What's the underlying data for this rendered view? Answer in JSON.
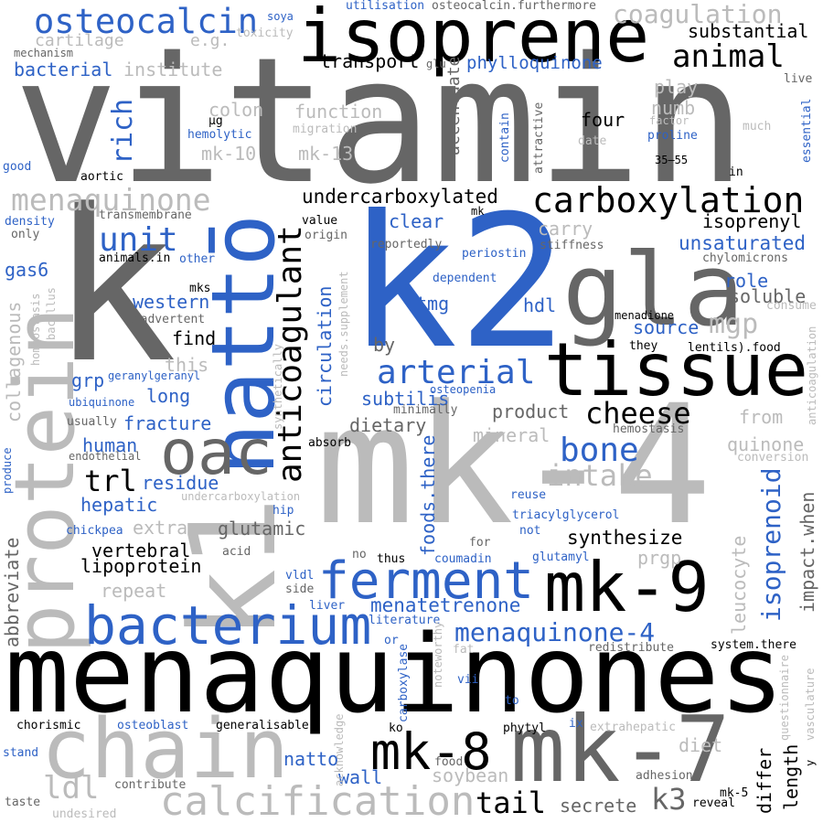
{
  "palette": {
    "black": "#000000",
    "dark_grey": "#666666",
    "light_grey": "#bbbbbb",
    "blue": "#2e62c6"
  },
  "words": [
    {
      "text": "vitamin",
      "color": "dark_grey",
      "orientation": "horizontal"
    },
    {
      "text": "menaquinones",
      "color": "black",
      "orientation": "horizontal"
    },
    {
      "text": "mk-4",
      "color": "light_grey",
      "orientation": "horizontal"
    },
    {
      "text": "k2",
      "color": "blue",
      "orientation": "horizontal"
    },
    {
      "text": "k",
      "color": "dark_grey",
      "orientation": "horizontal"
    },
    {
      "text": "isoprene",
      "color": "black",
      "orientation": "horizontal"
    },
    {
      "text": "tissue",
      "color": "black",
      "orientation": "horizontal"
    },
    {
      "text": "gla",
      "color": "dark_grey",
      "orientation": "horizontal"
    },
    {
      "text": "chain",
      "color": "light_grey",
      "orientation": "horizontal"
    },
    {
      "text": "mk-7",
      "color": "dark_grey",
      "orientation": "horizontal"
    },
    {
      "text": "mk-9",
      "color": "black",
      "orientation": "horizontal"
    },
    {
      "text": "k1",
      "color": "light_grey",
      "orientation": "vertical"
    },
    {
      "text": "protein",
      "color": "light_grey",
      "orientation": "vertical"
    },
    {
      "text": "nattō",
      "color": "blue",
      "orientation": "vertical"
    },
    {
      "text": "oac",
      "color": "dark_grey",
      "orientation": "horizontal"
    },
    {
      "text": "bacterium",
      "color": "blue",
      "orientation": "horizontal"
    },
    {
      "text": "ferment",
      "color": "blue",
      "orientation": "horizontal"
    },
    {
      "text": "mk-8",
      "color": "black",
      "orientation": "horizontal"
    },
    {
      "text": "calcification",
      "color": "light_grey",
      "orientation": "horizontal"
    },
    {
      "text": "carboxylation",
      "color": "black",
      "orientation": "horizontal"
    },
    {
      "text": "anticoagulant",
      "color": "black",
      "orientation": "vertical"
    },
    {
      "text": "osteocalcin",
      "color": "blue",
      "orientation": "horizontal"
    },
    {
      "text": "arterial",
      "color": "blue",
      "orientation": "horizontal"
    },
    {
      "text": "bone",
      "color": "blue",
      "orientation": "horizontal"
    },
    {
      "text": "menaquinone",
      "color": "light_grey",
      "orientation": "horizontal"
    },
    {
      "text": "coagulation",
      "color": "light_grey",
      "orientation": "horizontal"
    },
    {
      "text": "animal",
      "color": "black",
      "orientation": "horizontal"
    },
    {
      "text": "menaquinone-4",
      "color": "blue",
      "orientation": "horizontal"
    },
    {
      "text": "unit",
      "color": "blue",
      "orientation": "horizontal"
    },
    {
      "text": "rich",
      "color": "blue",
      "orientation": "vertical"
    },
    {
      "text": "cheese",
      "color": "black",
      "orientation": "horizontal"
    },
    {
      "text": "intake",
      "color": "light_grey",
      "orientation": "horizontal"
    },
    {
      "text": "mgp",
      "color": "light_grey",
      "orientation": "horizontal"
    },
    {
      "text": "ldl",
      "color": "light_grey",
      "orientation": "horizontal"
    },
    {
      "text": "tail",
      "color": "black",
      "orientation": "horizontal"
    },
    {
      "text": "k3",
      "color": "dark_grey",
      "orientation": "horizontal"
    },
    {
      "text": "trl",
      "color": "black",
      "orientation": "horizontal"
    },
    {
      "text": "isoprenoid",
      "color": "blue",
      "orientation": "vertical"
    },
    {
      "text": "undercarboxylated",
      "color": "black",
      "orientation": "horizontal"
    },
    {
      "text": "phylloquinone",
      "color": "blue",
      "orientation": "horizontal"
    },
    {
      "text": "substantial",
      "color": "black",
      "orientation": "horizontal"
    },
    {
      "text": "transport",
      "color": "black",
      "orientation": "horizontal"
    },
    {
      "text": "unsaturated",
      "color": "blue",
      "orientation": "horizontal"
    },
    {
      "text": "isoprenyl",
      "color": "black",
      "orientation": "horizontal"
    },
    {
      "text": "circulation",
      "color": "blue",
      "orientation": "vertical"
    },
    {
      "text": "foods.there",
      "color": "blue",
      "orientation": "vertical"
    },
    {
      "text": "menatetrenone",
      "color": "blue",
      "orientation": "horizontal"
    },
    {
      "text": "synthesize",
      "color": "black",
      "orientation": "horizontal"
    },
    {
      "text": "dietary",
      "color": "dark_grey",
      "orientation": "horizontal"
    },
    {
      "text": "product",
      "color": "dark_grey",
      "orientation": "horizontal"
    },
    {
      "text": "western",
      "color": "blue",
      "orientation": "horizontal"
    },
    {
      "text": "subtilis",
      "color": "blue",
      "orientation": "horizontal"
    },
    {
      "text": "hdl",
      "color": "blue",
      "orientation": "horizontal"
    },
    {
      "text": "tmg",
      "color": "blue",
      "orientation": "horizontal"
    },
    {
      "text": "clear",
      "color": "blue",
      "orientation": "horizontal"
    },
    {
      "text": "carry",
      "color": "light_grey",
      "orientation": "horizontal"
    },
    {
      "text": "four",
      "color": "black",
      "orientation": "horizontal"
    },
    {
      "text": "numb",
      "color": "light_grey",
      "orientation": "horizontal"
    },
    {
      "text": "play",
      "color": "light_grey",
      "orientation": "horizontal"
    },
    {
      "text": "role",
      "color": "blue",
      "orientation": "horizontal"
    },
    {
      "text": "soluble",
      "color": "dark_grey",
      "orientation": "horizontal"
    },
    {
      "text": "source",
      "color": "blue",
      "orientation": "horizontal"
    },
    {
      "text": "gas6",
      "color": "blue",
      "orientation": "horizontal"
    },
    {
      "text": "collagenous",
      "color": "light_grey",
      "orientation": "vertical"
    },
    {
      "text": "fracture",
      "color": "blue",
      "orientation": "horizontal"
    },
    {
      "text": "long",
      "color": "blue",
      "orientation": "horizontal"
    },
    {
      "text": "grp",
      "color": "blue",
      "orientation": "horizontal"
    },
    {
      "text": "human",
      "color": "blue",
      "orientation": "horizontal"
    },
    {
      "text": "residue",
      "color": "blue",
      "orientation": "horizontal"
    },
    {
      "text": "hepatic",
      "color": "blue",
      "orientation": "horizontal"
    },
    {
      "text": "glutamic",
      "color": "dark_grey",
      "orientation": "horizontal"
    },
    {
      "text": "vertebral",
      "color": "black",
      "orientation": "horizontal"
    },
    {
      "text": "lipoprotein",
      "color": "black",
      "orientation": "horizontal"
    },
    {
      "text": "repeat",
      "color": "light_grey",
      "orientation": "horizontal"
    },
    {
      "text": "extra",
      "color": "light_grey",
      "orientation": "horizontal"
    },
    {
      "text": "mineral",
      "color": "light_grey",
      "orientation": "horizontal"
    },
    {
      "text": "quinone",
      "color": "light_grey",
      "orientation": "horizontal"
    },
    {
      "text": "from",
      "color": "light_grey",
      "orientation": "horizontal"
    },
    {
      "text": "leucocyte",
      "color": "light_grey",
      "orientation": "vertical"
    },
    {
      "text": "impact.when",
      "color": "dark_grey",
      "orientation": "vertical"
    },
    {
      "text": "prgp",
      "color": "light_grey",
      "orientation": "horizontal"
    },
    {
      "text": "diet",
      "color": "light_grey",
      "orientation": "horizontal"
    },
    {
      "text": "length",
      "color": "black",
      "orientation": "vertical"
    },
    {
      "text": "differ",
      "color": "black",
      "orientation": "vertical"
    },
    {
      "text": "wall",
      "color": "blue",
      "orientation": "horizontal"
    },
    {
      "text": "natto",
      "color": "blue",
      "orientation": "horizontal"
    },
    {
      "text": "soybean",
      "color": "light_grey",
      "orientation": "horizontal"
    },
    {
      "text": "secrete",
      "color": "dark_grey",
      "orientation": "horizontal"
    },
    {
      "text": "abbreviate",
      "color": "dark_grey",
      "orientation": "vertical"
    },
    {
      "text": "bacterial",
      "color": "blue",
      "orientation": "horizontal"
    },
    {
      "text": "institute",
      "color": "light_grey",
      "orientation": "horizontal"
    },
    {
      "text": "cartilage",
      "color": "light_grey",
      "orientation": "horizontal"
    },
    {
      "text": "e.g.",
      "color": "light_grey",
      "orientation": "horizontal"
    },
    {
      "text": "colon",
      "color": "light_grey",
      "orientation": "horizontal"
    },
    {
      "text": "function",
      "color": "light_grey",
      "orientation": "horizontal"
    },
    {
      "text": "mk-10",
      "color": "light_grey",
      "orientation": "horizontal"
    },
    {
      "text": "mk-13",
      "color": "light_grey",
      "orientation": "horizontal"
    },
    {
      "text": "accentuate",
      "color": "dark_grey",
      "orientation": "vertical"
    },
    {
      "text": "find",
      "color": "black",
      "orientation": "horizontal"
    },
    {
      "text": "this",
      "color": "light_grey",
      "orientation": "horizontal"
    },
    {
      "text": "by",
      "color": "dark_grey",
      "orientation": "horizontal"
    },
    {
      "text": "hemolytic",
      "color": "blue",
      "orientation": "horizontal"
    },
    {
      "text": "mk-5",
      "color": "black",
      "orientation": "horizontal"
    },
    {
      "text": "soya",
      "color": "blue",
      "orientation": "horizontal"
    },
    {
      "text": "utilisation",
      "color": "blue",
      "orientation": "horizontal"
    },
    {
      "text": "osteocalcin.furthermore",
      "color": "dark_grey",
      "orientation": "horizontal"
    },
    {
      "text": "toxicity",
      "color": "light_grey",
      "orientation": "horizontal"
    },
    {
      "text": "mechanism",
      "color": "dark_grey",
      "orientation": "horizontal"
    },
    {
      "text": "glu",
      "color": "dark_grey",
      "orientation": "horizontal"
    },
    {
      "text": "live",
      "color": "dark_grey",
      "orientation": "horizontal"
    },
    {
      "text": "μg",
      "color": "black",
      "orientation": "horizontal"
    },
    {
      "text": "migration",
      "color": "light_grey",
      "orientation": "horizontal"
    },
    {
      "text": "factor",
      "color": "light_grey",
      "orientation": "horizontal"
    },
    {
      "text": "much",
      "color": "light_grey",
      "orientation": "horizontal"
    },
    {
      "text": "essential",
      "color": "blue",
      "orientation": "vertical"
    },
    {
      "text": "proline",
      "color": "blue",
      "orientation": "horizontal"
    },
    {
      "text": "date",
      "color": "light_grey",
      "orientation": "horizontal"
    },
    {
      "text": "contain",
      "color": "blue",
      "orientation": "vertical"
    },
    {
      "text": "attractive",
      "color": "dark_grey",
      "orientation": "vertical"
    },
    {
      "text": "35–55",
      "color": "black",
      "orientation": "horizontal"
    },
    {
      "text": "in",
      "color": "black",
      "orientation": "horizontal"
    },
    {
      "text": "good",
      "color": "blue",
      "orientation": "horizontal"
    },
    {
      "text": "aortic",
      "color": "black",
      "orientation": "horizontal"
    },
    {
      "text": "density",
      "color": "blue",
      "orientation": "horizontal"
    },
    {
      "text": "only",
      "color": "dark_grey",
      "orientation": "horizontal"
    },
    {
      "text": "transmembrane",
      "color": "dark_grey",
      "orientation": "horizontal"
    },
    {
      "text": "value",
      "color": "black",
      "orientation": "horizontal"
    },
    {
      "text": "origin",
      "color": "dark_grey",
      "orientation": "horizontal"
    },
    {
      "text": "mk",
      "color": "black",
      "orientation": "horizontal"
    },
    {
      "text": "reportedly",
      "color": "dark_grey",
      "orientation": "horizontal"
    },
    {
      "text": "periostin",
      "color": "blue",
      "orientation": "horizontal"
    },
    {
      "text": "stiffness",
      "color": "dark_grey",
      "orientation": "horizontal"
    },
    {
      "text": "chylomicrons",
      "color": "dark_grey",
      "orientation": "horizontal"
    },
    {
      "text": "animals.in",
      "color": "black",
      "orientation": "horizontal"
    },
    {
      "text": "other",
      "color": "blue",
      "orientation": "horizontal"
    },
    {
      "text": "dependent",
      "color": "blue",
      "orientation": "horizontal"
    },
    {
      "text": "mks",
      "color": "black",
      "orientation": "horizontal"
    },
    {
      "text": "inadvertent",
      "color": "dark_grey",
      "orientation": "horizontal"
    },
    {
      "text": "needs.supplement",
      "color": "light_grey",
      "orientation": "vertical"
    },
    {
      "text": "menadione",
      "color": "black",
      "orientation": "horizontal"
    },
    {
      "text": "consume",
      "color": "light_grey",
      "orientation": "horizontal"
    },
    {
      "text": "they",
      "color": "black",
      "orientation": "horizontal"
    },
    {
      "text": "lentils).food",
      "color": "black",
      "orientation": "horizontal"
    },
    {
      "text": "homeostasis",
      "color": "light_grey",
      "orientation": "vertical"
    },
    {
      "text": "bacillus",
      "color": "light_grey",
      "orientation": "vertical"
    },
    {
      "text": "geranylgeranyl",
      "color": "blue",
      "orientation": "horizontal"
    },
    {
      "text": "ubiquinone",
      "color": "blue",
      "orientation": "horizontal"
    },
    {
      "text": "usually",
      "color": "dark_grey",
      "orientation": "horizontal"
    },
    {
      "text": "synthetically",
      "color": "light_grey",
      "orientation": "vertical"
    },
    {
      "text": "osteopenia",
      "color": "blue",
      "orientation": "horizontal"
    },
    {
      "text": "minimally",
      "color": "dark_grey",
      "orientation": "horizontal"
    },
    {
      "text": "hemostasis",
      "color": "dark_grey",
      "orientation": "horizontal"
    },
    {
      "text": "anticoagulation",
      "color": "light_grey",
      "orientation": "vertical"
    },
    {
      "text": "produce",
      "color": "blue",
      "orientation": "vertical"
    },
    {
      "text": "endothelial",
      "color": "dark_grey",
      "orientation": "horizontal"
    },
    {
      "text": "absorb",
      "color": "black",
      "orientation": "horizontal"
    },
    {
      "text": "conversion",
      "color": "light_grey",
      "orientation": "horizontal"
    },
    {
      "text": "undercarboxylation",
      "color": "light_grey",
      "orientation": "horizontal"
    },
    {
      "text": "hip",
      "color": "blue",
      "orientation": "horizontal"
    },
    {
      "text": "reuse",
      "color": "blue",
      "orientation": "horizontal"
    },
    {
      "text": "triacylglycerol",
      "color": "blue",
      "orientation": "horizontal"
    },
    {
      "text": "not",
      "color": "blue",
      "orientation": "horizontal"
    },
    {
      "text": "chickpea",
      "color": "blue",
      "orientation": "horizontal"
    },
    {
      "text": "acid",
      "color": "dark_grey",
      "orientation": "horizontal"
    },
    {
      "text": "for",
      "color": "dark_grey",
      "orientation": "horizontal"
    },
    {
      "text": "no",
      "color": "dark_grey",
      "orientation": "horizontal"
    },
    {
      "text": "thus",
      "color": "black",
      "orientation": "horizontal"
    },
    {
      "text": "coumadin",
      "color": "blue",
      "orientation": "horizontal"
    },
    {
      "text": "glutamyl",
      "color": "blue",
      "orientation": "horizontal"
    },
    {
      "text": "vldl",
      "color": "blue",
      "orientation": "horizontal"
    },
    {
      "text": "side",
      "color": "dark_grey",
      "orientation": "horizontal"
    },
    {
      "text": "liver",
      "color": "blue",
      "orientation": "horizontal"
    },
    {
      "text": "literature",
      "color": "blue",
      "orientation": "horizontal"
    },
    {
      "text": "or",
      "color": "blue",
      "orientation": "horizontal"
    },
    {
      "text": "noteworthy",
      "color": "light_grey",
      "orientation": "vertical"
    },
    {
      "text": "fat",
      "color": "light_grey",
      "orientation": "horizontal"
    },
    {
      "text": "redistribute",
      "color": "dark_grey",
      "orientation": "horizontal"
    },
    {
      "text": "system.there",
      "color": "black",
      "orientation": "horizontal"
    },
    {
      "text": "vasculature",
      "color": "light_grey",
      "orientation": "vertical"
    },
    {
      "text": "carboxylase",
      "color": "blue",
      "orientation": "vertical"
    },
    {
      "text": "vii",
      "color": "blue",
      "orientation": "horizontal"
    },
    {
      "text": "to",
      "color": "blue",
      "orientation": "horizontal"
    },
    {
      "text": "acknowledge",
      "color": "light_grey",
      "orientation": "vertical"
    },
    {
      "text": "questionnaire",
      "color": "light_grey",
      "orientation": "vertical"
    },
    {
      "text": "y",
      "color": "black",
      "orientation": "vertical"
    },
    {
      "text": "chorismic",
      "color": "black",
      "orientation": "horizontal"
    },
    {
      "text": "osteoblast",
      "color": "blue",
      "orientation": "horizontal"
    },
    {
      "text": "generalisable",
      "color": "black",
      "orientation": "horizontal"
    },
    {
      "text": "ko",
      "color": "black",
      "orientation": "horizontal"
    },
    {
      "text": "phytyl",
      "color": "black",
      "orientation": "horizontal"
    },
    {
      "text": "ix",
      "color": "blue",
      "orientation": "horizontal"
    },
    {
      "text": "extrahepatic",
      "color": "light_grey",
      "orientation": "horizontal"
    },
    {
      "text": "stand",
      "color": "blue",
      "orientation": "horizontal"
    },
    {
      "text": "food",
      "color": "dark_grey",
      "orientation": "horizontal"
    },
    {
      "text": "adhesion",
      "color": "dark_grey",
      "orientation": "horizontal"
    },
    {
      "text": "contribute",
      "color": "dark_grey",
      "orientation": "horizontal"
    },
    {
      "text": "taste",
      "color": "dark_grey",
      "orientation": "horizontal"
    },
    {
      "text": "undesired",
      "color": "light_grey",
      "orientation": "horizontal"
    },
    {
      "text": "reveal",
      "color": "black",
      "orientation": "horizontal"
    }
  ]
}
